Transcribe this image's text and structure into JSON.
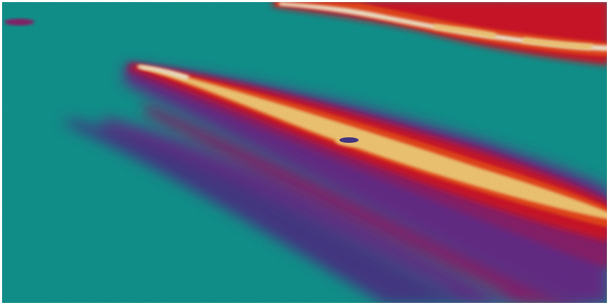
{
  "image": {
    "kind": "false-color thermal aerial view",
    "palette": {
      "water": "#139f98",
      "water_light": "#21aaa0",
      "water_dark": "#0f8e8a",
      "plume_dark": "#4a3a8c",
      "plume_purple": "#6a2f8e",
      "plume_magenta": "#8f246f",
      "plume_red": "#d8122a",
      "plume_orange": "#f24a1e",
      "plume_yellow": "#ffd27a",
      "plume_white": "#fff3d6",
      "border": "#ffffff"
    }
  }
}
